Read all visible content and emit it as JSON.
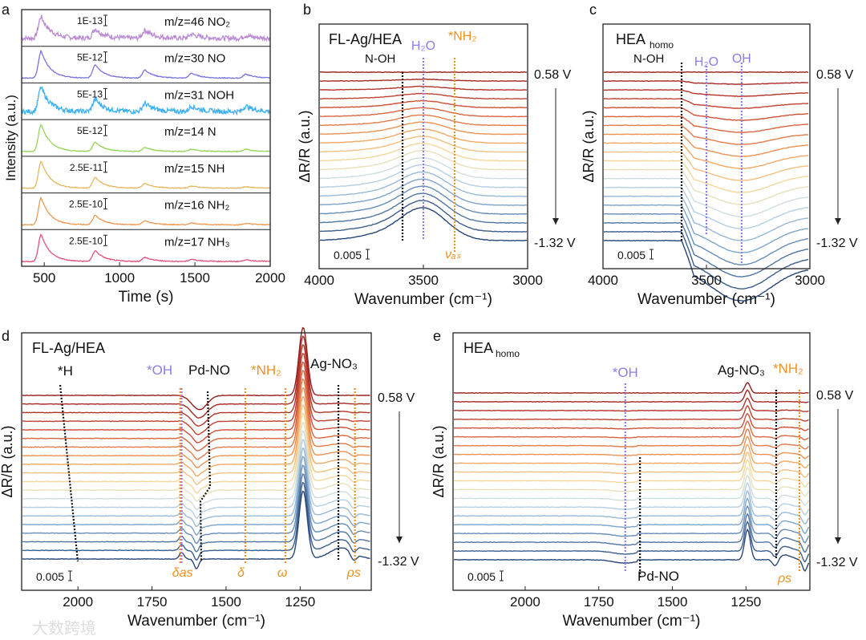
{
  "chart_data": [
    {
      "panel": "a",
      "type": "line",
      "xlabel": "Time (s)",
      "ylabel": "Intensity (a.u.)",
      "xlim": [
        350,
        2000
      ],
      "xticks": [
        500,
        1000,
        1500,
        2000
      ],
      "peak_times": [
        480,
        840,
        1170,
        1480,
        1840
      ],
      "series": [
        {
          "name": "m/z=46 NO₂",
          "scale": "1E-13",
          "color": "#b98bd6",
          "rel_peaks": [
            0.8,
            0.35,
            0.3,
            0.15,
            0.1
          ],
          "noisy": true
        },
        {
          "name": "m/z=30 NO",
          "scale": "5E-12",
          "color": "#7b73e0",
          "rel_peaks": [
            1.0,
            0.5,
            0.3,
            0.18,
            0.15
          ],
          "noisy": false
        },
        {
          "name": "m/z=31 NOH",
          "scale": "5E-13",
          "color": "#3fb1f0",
          "rel_peaks": [
            0.9,
            0.45,
            0.3,
            0.2,
            0.2
          ],
          "noisy": true
        },
        {
          "name": "m/z=14 N",
          "scale": "5E-12",
          "color": "#98d45a",
          "rel_peaks": [
            1.0,
            0.35,
            0.15,
            0.08,
            0.08
          ],
          "noisy": false
        },
        {
          "name": "m/z=15 NH",
          "scale": "2.5E-11",
          "color": "#e6b760",
          "rel_peaks": [
            1.0,
            0.4,
            0.17,
            0.08,
            0.05
          ],
          "noisy": false
        },
        {
          "name": "m/z=16 NH₂",
          "scale": "2.5E-10",
          "color": "#ec9a55",
          "rel_peaks": [
            1.0,
            0.35,
            0.15,
            0.07,
            0.05
          ],
          "noisy": false
        },
        {
          "name": "m/z=17 NH₃",
          "scale": "2.5E-10",
          "color": "#e0507a",
          "rel_peaks": [
            1.0,
            0.4,
            0.15,
            0.08,
            0.06
          ],
          "noisy": false
        }
      ]
    },
    {
      "panel": "b",
      "type": "line",
      "title": "FL-Ag/HEA",
      "xlabel": "Wavenumber (cm⁻¹)",
      "ylabel": "ΔR/R (a.u.)",
      "xlim": [
        4000,
        3000
      ],
      "xticks": [
        4000,
        3500,
        3000
      ],
      "scale_bar": "0.005",
      "potential_start": "0.58 V",
      "potential_end": "-1.32 V",
      "n_spectra": 20,
      "markers": [
        {
          "label": "N-OH",
          "x": 3600,
          "color": "#111111"
        },
        {
          "label": "H₂O",
          "x": 3500,
          "color": "#8a7ee8"
        },
        {
          "label": "*NH₂",
          "x": 3350,
          "color": "#f0901e",
          "mode": "νₐₛ"
        }
      ]
    },
    {
      "panel": "c",
      "type": "line",
      "title_main": "HEA",
      "title_sub": "homo",
      "xlabel": "Wavenumber (cm⁻¹)",
      "ylabel": "ΔR/R (a.u.)",
      "xlim": [
        4000,
        3000
      ],
      "xticks": [
        4000,
        3500,
        3000
      ],
      "scale_bar": "0.005",
      "potential_start": "0.58 V",
      "potential_end": "-1.32 V",
      "n_spectra": 20,
      "markers": [
        {
          "label": "N-OH",
          "x": 3620,
          "color": "#111111"
        },
        {
          "label": "H₂O",
          "x": 3500,
          "color": "#8a7ee8"
        },
        {
          "label": "OH",
          "x": 3330,
          "color": "#8a7ee8"
        }
      ]
    },
    {
      "panel": "d",
      "type": "line",
      "title": "FL-Ag/HEA",
      "xlabel": "Wavenumber (cm⁻¹)",
      "ylabel": "ΔR/R (a.u.)",
      "xlim": [
        2190,
        1010
      ],
      "xticks": [
        2000,
        1750,
        1500,
        1250
      ],
      "scale_bar": "0.005",
      "potential_start": "0.58 V",
      "potential_end": "-1.32 V",
      "n_spectra": 20,
      "labels": [
        {
          "label": "*H",
          "color": "#111111"
        },
        {
          "label": "*OH",
          "color": "#8a7ee8"
        },
        {
          "label": "Pd-NO",
          "color": "#111111"
        },
        {
          "label": "*NH₂",
          "color": "#f0901e"
        },
        {
          "label": "Ag-NO₃",
          "color": "#111111"
        }
      ],
      "modes": [
        {
          "label": "δas",
          "x": 1655,
          "color": "#f0901e"
        },
        {
          "label": "δ",
          "x": 1435,
          "color": "#f0901e"
        },
        {
          "label": "ω",
          "x": 1300,
          "color": "#f0901e"
        },
        {
          "label": "ρs",
          "x": 1065,
          "color": "#f0901e"
        }
      ]
    },
    {
      "panel": "e",
      "type": "line",
      "title_main": "HEA",
      "title_sub": "homo",
      "xlabel": "Wavenumber (cm⁻¹)",
      "ylabel": "ΔR/R (a.u.)",
      "xlim": [
        2245,
        1033
      ],
      "xticks": [
        2000,
        1750,
        1500,
        1250
      ],
      "scale_bar": "0.005",
      "potential_start": "0.58 V",
      "potential_end": "-1.32 V",
      "n_spectra": 20,
      "labels": [
        {
          "label": "*OH",
          "x": 1660,
          "color": "#8a7ee8"
        },
        {
          "label": "Ag-NO₃",
          "x": 1245,
          "color": "#111111"
        },
        {
          "label": "*NH₂",
          "x": 1050,
          "color": "#f0901e"
        },
        {
          "label": "Pd-NO",
          "x": 1610,
          "color": "#111111"
        }
      ],
      "modes": [
        {
          "label": "ρs",
          "x": 1050,
          "color": "#f0901e"
        }
      ]
    }
  ],
  "panel_letters": [
    "a",
    "b",
    "c",
    "d",
    "e"
  ],
  "watermark": "大数跨境"
}
